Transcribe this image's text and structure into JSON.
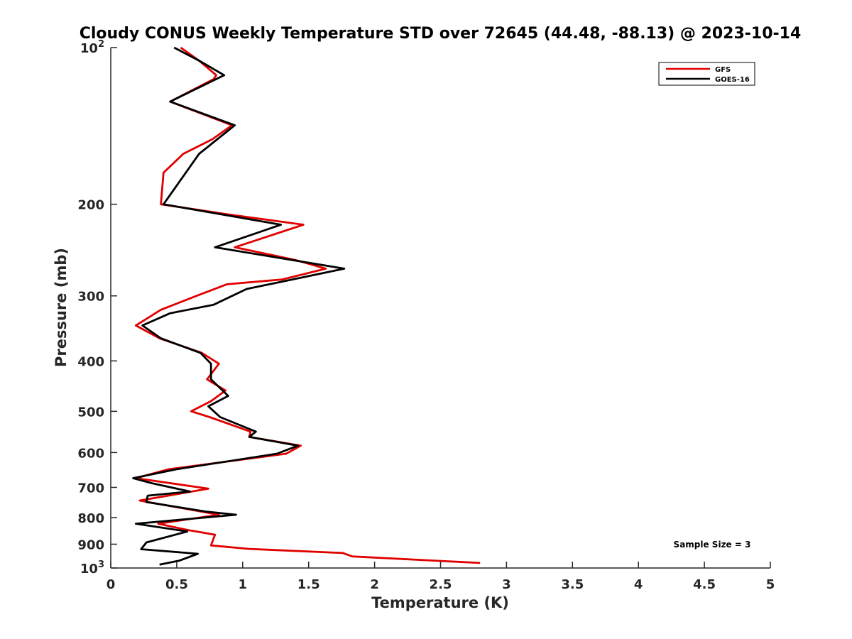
{
  "chart_data": {
    "type": "line",
    "title": "Cloudy CONUS Weekly Temperature STD over 72645 (44.48, -88.13) @ 2023-10-14",
    "xlabel": "Temperature (K)",
    "ylabel": "Pressure (mb)",
    "xlim": [
      0,
      5
    ],
    "ylim": [
      100,
      1000
    ],
    "yscale": "log",
    "y_reversed": true,
    "grid": false,
    "legend_position": "top-right",
    "x_ticks": [
      "0",
      "0.5",
      "1",
      "1.5",
      "2",
      "2.5",
      "3",
      "3.5",
      "4",
      "4.5",
      "5"
    ],
    "y_ticks": [
      {
        "value": 100,
        "base": "10",
        "exp": "2"
      },
      {
        "value": 200,
        "label": "200"
      },
      {
        "value": 300,
        "label": "300"
      },
      {
        "value": 400,
        "label": "400"
      },
      {
        "value": 500,
        "label": "500"
      },
      {
        "value": 600,
        "label": "600"
      },
      {
        "value": 700,
        "label": "700"
      },
      {
        "value": 800,
        "label": "800"
      },
      {
        "value": 900,
        "label": "900"
      },
      {
        "value": 1000,
        "base": "10",
        "exp": "3"
      }
    ],
    "annotation": "Sample Size = 3",
    "series": [
      {
        "name": "GFS",
        "color": "#e00000",
        "points": [
          [
            0.53,
            100
          ],
          [
            0.67,
            106
          ],
          [
            0.8,
            113
          ],
          [
            0.78,
            115
          ],
          [
            0.45,
            127
          ],
          [
            0.92,
            141
          ],
          [
            0.77,
            150
          ],
          [
            0.55,
            160
          ],
          [
            0.4,
            174
          ],
          [
            0.38,
            200
          ],
          [
            0.88,
            209
          ],
          [
            1.46,
            219
          ],
          [
            0.94,
            242
          ],
          [
            1.4,
            256
          ],
          [
            1.63,
            266
          ],
          [
            1.3,
            279
          ],
          [
            0.88,
            285
          ],
          [
            0.65,
            300
          ],
          [
            0.38,
            319
          ],
          [
            0.19,
            342
          ],
          [
            0.37,
            362
          ],
          [
            0.69,
            386
          ],
          [
            0.82,
            405
          ],
          [
            0.73,
            434
          ],
          [
            0.87,
            456
          ],
          [
            0.76,
            478
          ],
          [
            0.61,
            500
          ],
          [
            0.75,
            513
          ],
          [
            1.06,
            547
          ],
          [
            1.05,
            560
          ],
          [
            1.44,
            582
          ],
          [
            1.33,
            603
          ],
          [
            0.44,
            646
          ],
          [
            0.19,
            672
          ],
          [
            0.74,
            704
          ],
          [
            0.22,
            742
          ],
          [
            0.82,
            790
          ],
          [
            0.36,
            822
          ],
          [
            0.58,
            845
          ],
          [
            0.79,
            863
          ],
          [
            0.76,
            905
          ],
          [
            1.05,
            919
          ],
          [
            1.76,
            936
          ],
          [
            1.83,
            950
          ],
          [
            2.8,
            978
          ]
        ]
      },
      {
        "name": "GOES-16",
        "color": "#000000",
        "points": [
          [
            0.48,
            100
          ],
          [
            0.67,
            106
          ],
          [
            0.86,
            113
          ],
          [
            0.45,
            127
          ],
          [
            0.94,
            141
          ],
          [
            0.67,
            160
          ],
          [
            0.4,
            200
          ],
          [
            1.29,
            219
          ],
          [
            0.79,
            242
          ],
          [
            1.77,
            266
          ],
          [
            1.03,
            291
          ],
          [
            0.78,
            312
          ],
          [
            0.45,
            324
          ],
          [
            0.24,
            342
          ],
          [
            0.38,
            362
          ],
          [
            0.68,
            386
          ],
          [
            0.76,
            405
          ],
          [
            0.76,
            434
          ],
          [
            0.89,
            467
          ],
          [
            0.74,
            489
          ],
          [
            0.83,
            513
          ],
          [
            1.1,
            547
          ],
          [
            1.05,
            560
          ],
          [
            1.42,
            582
          ],
          [
            1.26,
            603
          ],
          [
            0.5,
            646
          ],
          [
            0.17,
            672
          ],
          [
            0.31,
            687
          ],
          [
            0.6,
            713
          ],
          [
            0.28,
            726
          ],
          [
            0.27,
            747
          ],
          [
            0.72,
            779
          ],
          [
            0.95,
            790
          ],
          [
            0.19,
            822
          ],
          [
            0.58,
            851
          ],
          [
            0.27,
            893
          ],
          [
            0.23,
            920
          ],
          [
            0.66,
            939
          ],
          [
            0.52,
            968
          ],
          [
            0.37,
            985
          ]
        ]
      }
    ]
  }
}
